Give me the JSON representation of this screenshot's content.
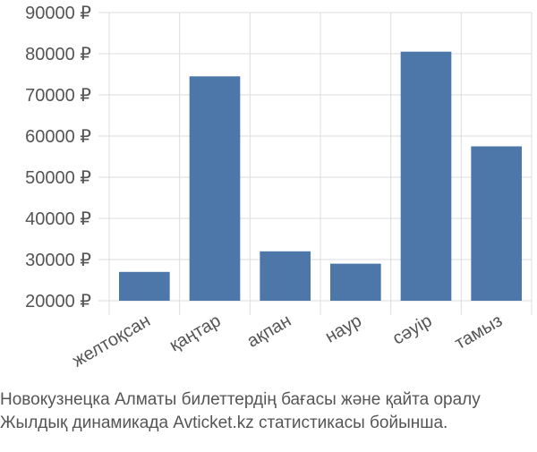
{
  "chart_data": {
    "type": "bar",
    "categories": [
      "желтоқсан",
      "қаңтар",
      "ақпан",
      "наур",
      "сәуір",
      "тамыз"
    ],
    "values": [
      27000,
      74500,
      32000,
      29000,
      80500,
      57500
    ],
    "color": "#4d77a8",
    "ylim": [
      20000,
      90000
    ],
    "yticks": [
      {
        "value": 20000,
        "label": "20000 ₽"
      },
      {
        "value": 30000,
        "label": "30000 ₽"
      },
      {
        "value": 40000,
        "label": "40000 ₽"
      },
      {
        "value": 50000,
        "label": "50000 ₽"
      },
      {
        "value": 60000,
        "label": "60000 ₽"
      },
      {
        "value": 70000,
        "label": "70000 ₽"
      },
      {
        "value": 80000,
        "label": "80000 ₽"
      },
      {
        "value": 90000,
        "label": "90000 ₽"
      }
    ],
    "grid": true,
    "caption": [
      "Новокузнецка Алматы билеттердің бағасы және қайта оралу",
      "Жылдық динамикада Avticket.kz статистикасы бойынша."
    ]
  }
}
